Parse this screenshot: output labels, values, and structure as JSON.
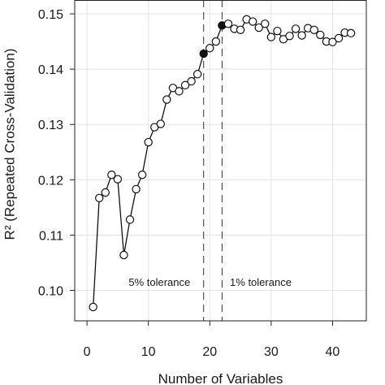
{
  "chart_data": {
    "type": "line",
    "xlabel": "Number of Variables",
    "ylabel": "R² (Repeated Cross-Validation)",
    "xlim": [
      -2,
      45.5
    ],
    "ylim": [
      0.0945,
      0.1525
    ],
    "xticks": [
      0,
      10,
      20,
      30,
      40
    ],
    "yticks": [
      0.1,
      0.11,
      0.12,
      0.13,
      0.14,
      0.15
    ],
    "ytick_labels": [
      "0.10",
      "0.11",
      "0.12",
      "0.13",
      "0.14",
      "0.15"
    ],
    "grid": true,
    "series": [
      {
        "x": [
          1,
          2,
          3,
          4,
          5,
          6,
          7,
          8,
          9,
          10,
          11,
          12,
          13,
          14,
          15,
          16,
          17,
          18,
          19,
          20,
          21,
          22,
          23,
          24,
          25,
          26,
          27,
          28,
          29,
          30,
          31,
          32,
          33,
          34,
          35,
          36,
          37,
          38,
          39,
          40,
          41,
          42,
          43
        ],
        "values": [
          0.097,
          0.1167,
          0.1177,
          0.1209,
          0.1201,
          0.1064,
          0.1128,
          0.1183,
          0.1209,
          0.1268,
          0.1295,
          0.1301,
          0.1345,
          0.1366,
          0.136,
          0.1371,
          0.1378,
          0.1391,
          0.1428,
          0.1438,
          0.145,
          0.1479,
          0.1482,
          0.1473,
          0.1471,
          0.149,
          0.1486,
          0.1475,
          0.1482,
          0.1458,
          0.1469,
          0.1454,
          0.146,
          0.1473,
          0.1461,
          0.1474,
          0.1471,
          0.1462,
          0.145,
          0.1449,
          0.1456,
          0.1466,
          0.1465
        ],
        "filled_points_x": [
          19,
          22
        ]
      }
    ],
    "vlines": [
      19,
      22
    ],
    "annotations": [
      {
        "text": "5% tolerance",
        "x": 11.8,
        "y": 0.1008
      },
      {
        "text": "1% tolerance",
        "x": 28.3,
        "y": 0.1008
      }
    ]
  }
}
